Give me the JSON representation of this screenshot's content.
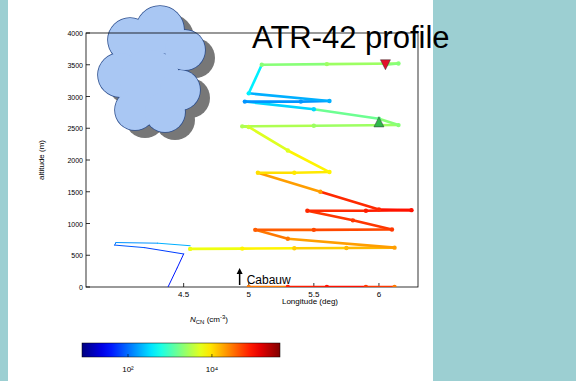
{
  "chart_data": {
    "type": "scatter",
    "title": "ATR-42 profile",
    "x_label": "Longitude (deg)",
    "y_label": "altitude (m)",
    "xlim": [
      3.75,
      6.3
    ],
    "xticks": [
      4.5,
      5,
      5.5,
      6
    ],
    "ylim": [
      0,
      4000
    ],
    "yticks": [
      0,
      500,
      1000,
      1500,
      2000,
      2500,
      3000,
      3500,
      4000
    ],
    "series": [
      {
        "marker": "none",
        "x": [
          4.38,
          4.45,
          4.5,
          4.2,
          3.97,
          3.98,
          4.3,
          4.55
        ],
        "values": [
          0,
          300,
          520,
          620,
          660,
          700,
          690,
          650
        ],
        "n_cn": [
          40,
          40,
          60,
          80,
          100,
          150,
          200,
          400
        ]
      },
      {
        "marker": "circle",
        "x": [
          4.55,
          4.95,
          5.35,
          5.75,
          6.12,
          5.3,
          5.05,
          5.5,
          6.1,
          5.8,
          5.45,
          5.9,
          6.25,
          6.0,
          5.55,
          5.07,
          5.35,
          5.62,
          5.3,
          5.0,
          4.95,
          5.5,
          6.15,
          6.0,
          5.5,
          4.97,
          5.4,
          5.62,
          5.0,
          5.1,
          5.6,
          6.15,
          6.05
        ],
        "values": [
          600,
          605,
          610,
          615,
          620,
          760,
          900,
          900,
          905,
          1050,
          1200,
          1200,
          1210,
          1220,
          1500,
          1800,
          1800,
          1810,
          2150,
          2520,
          2530,
          2540,
          2550,
          2650,
          2800,
          2920,
          2920,
          2930,
          3050,
          3500,
          3510,
          3520,
          3500
        ],
        "n_cn": [
          6000,
          8000,
          12000,
          15000,
          20000,
          30000,
          40000,
          50000,
          60000,
          60000,
          70000,
          80000,
          90000,
          70000,
          20000,
          10000,
          9000,
          8000,
          5000,
          4000,
          3000,
          2500,
          2000,
          1500,
          300,
          150,
          150,
          200,
          400,
          2000,
          2500,
          2000,
          1500
        ]
      },
      {
        "marker": "circle",
        "x": [
          5.0,
          5.3,
          5.6,
          5.9,
          6.12
        ],
        "values": [
          0,
          0,
          0,
          0,
          0
        ],
        "n_cn": [
          30000,
          80000,
          90000,
          60000,
          30000
        ]
      }
    ],
    "markers": [
      {
        "x": 6.05,
        "y": 3500,
        "marker": "triangle-down",
        "color": "#e3102a"
      },
      {
        "x": 6.0,
        "y": 2600,
        "marker": "triangle-up",
        "color": "#2fb84a"
      }
    ],
    "annotations": [
      {
        "text": "Cabauw",
        "x": 4.93,
        "y": 0
      }
    ],
    "colorbar": {
      "label": [
        "N",
        "CN",
        " (cm",
        "-3",
        ")"
      ],
      "range": [
        8,
        420000
      ],
      "ticks": [
        {
          "value": 100,
          "label": "10²"
        },
        {
          "value": 10000,
          "label": "10⁴"
        }
      ],
      "log": true
    }
  }
}
